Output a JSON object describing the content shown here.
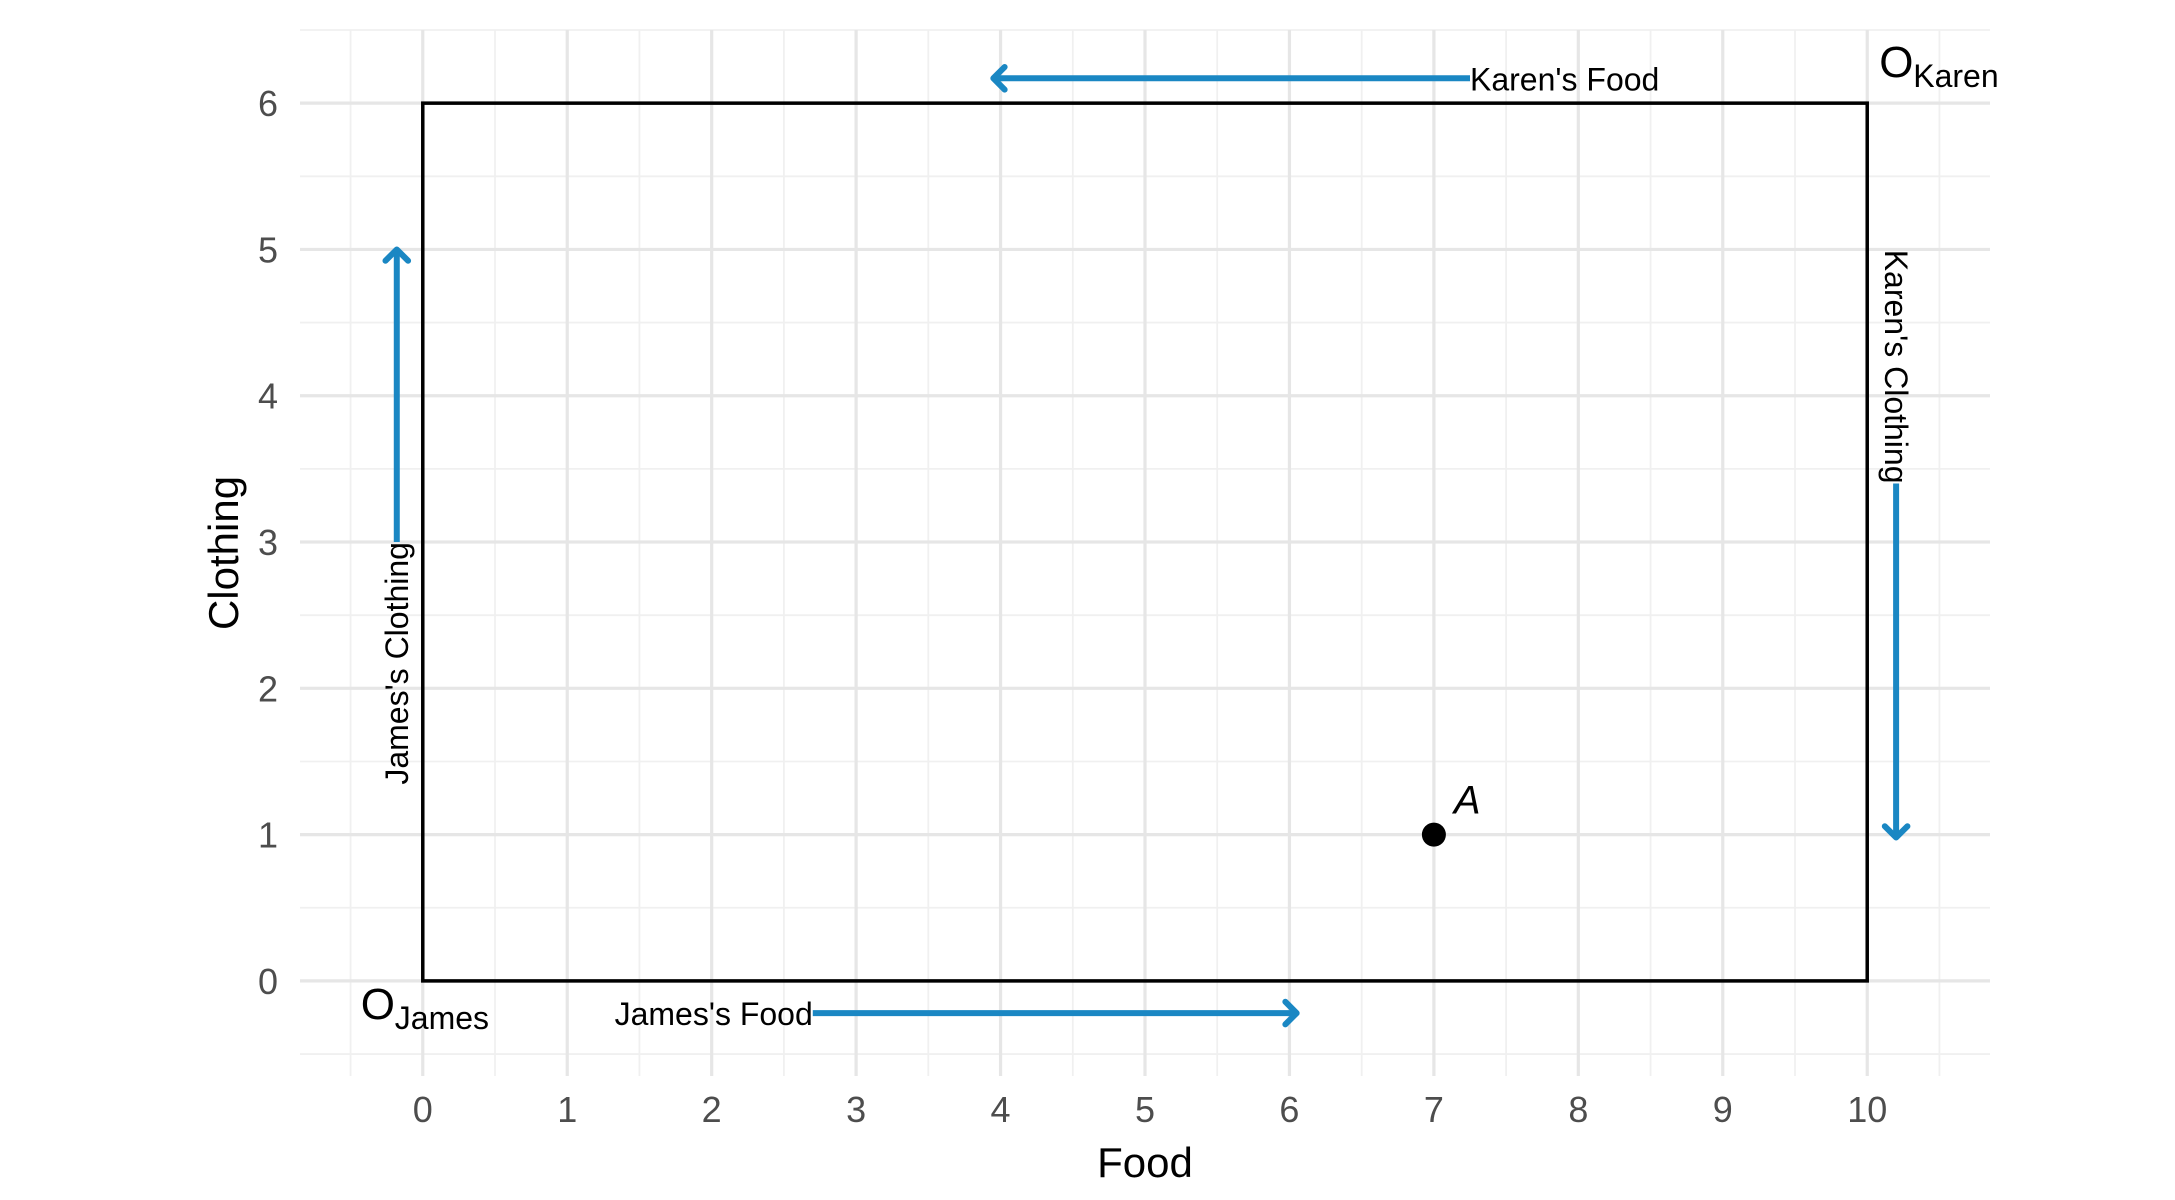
{
  "chart_data": {
    "type": "edgeworth-box",
    "xlabel": "Food",
    "ylabel": "Clothing",
    "x_ticks": [
      0,
      1,
      2,
      3,
      4,
      5,
      6,
      7,
      8,
      9,
      10
    ],
    "y_ticks": [
      0,
      1,
      2,
      3,
      4,
      5,
      6
    ],
    "xlim": [
      -0.85,
      10.85
    ],
    "ylim": [
      -0.65,
      6.5
    ],
    "grid": true,
    "box": {
      "x0": 0,
      "y0": 0,
      "x1": 10,
      "y1": 6
    },
    "origins": [
      {
        "main": "O",
        "sub": "James",
        "x": 0,
        "y": 0
      },
      {
        "main": "O",
        "sub": "Karen",
        "x": 10,
        "y": 6
      }
    ],
    "points": [
      {
        "label": "A",
        "x": 7,
        "y": 1
      }
    ],
    "arrows": [
      {
        "label": "James's Food",
        "from": [
          2.7,
          -0.22
        ],
        "to": [
          6.05,
          -0.22
        ],
        "orientation": "horizontal"
      },
      {
        "label": "Karen's Food",
        "from": [
          7.25,
          6.17
        ],
        "to": [
          3.95,
          6.17
        ],
        "orientation": "horizontal"
      },
      {
        "label": "James's Clothing",
        "from": [
          -0.18,
          3.0
        ],
        "to": [
          -0.18,
          5.0
        ],
        "orientation": "vertical"
      },
      {
        "label": "Karen's Clothing",
        "from": [
          10.2,
          3.4
        ],
        "to": [
          10.2,
          0.98
        ],
        "orientation": "vertical"
      }
    ],
    "colors": {
      "arrow": "#1a87c3",
      "box": "#000000",
      "point": "#000000"
    }
  }
}
